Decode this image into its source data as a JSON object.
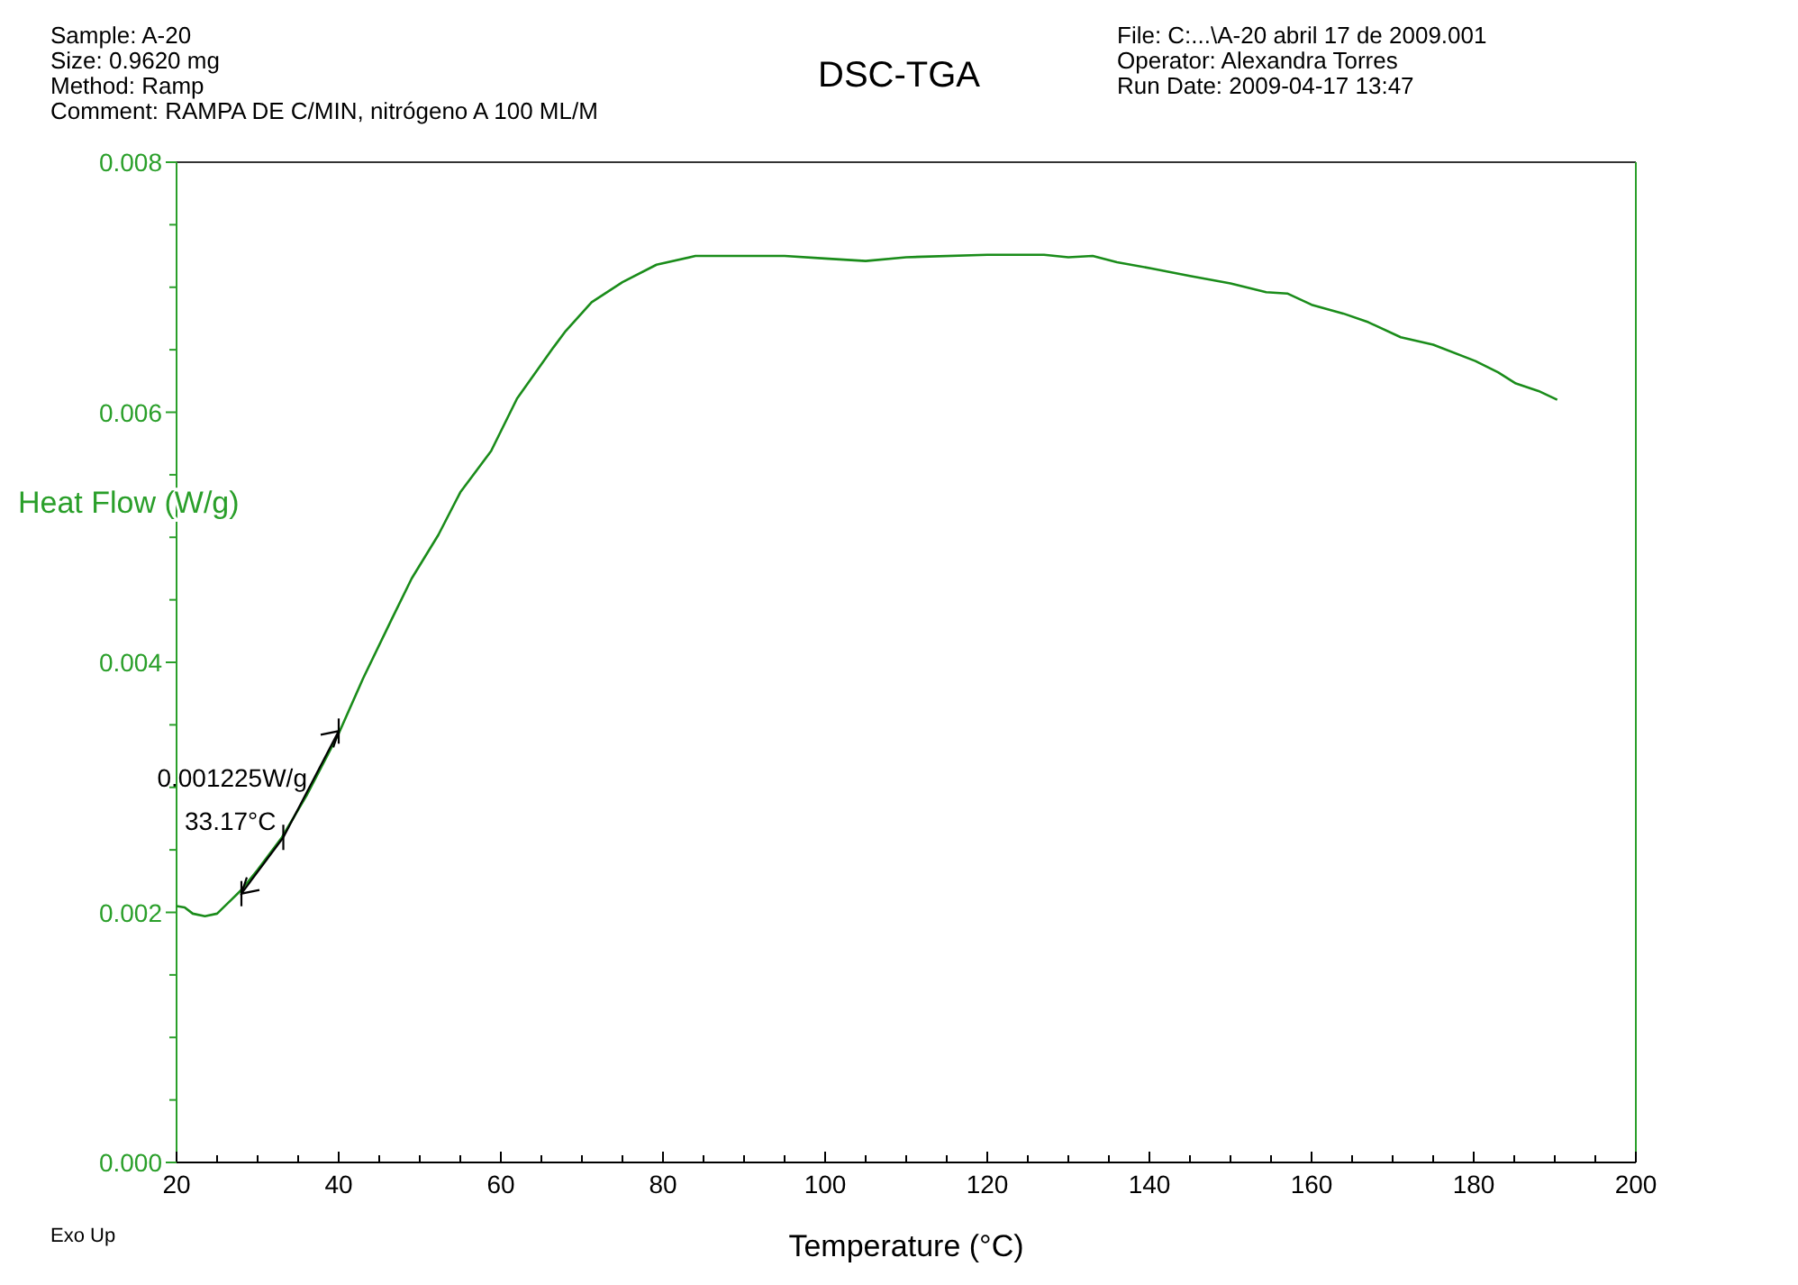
{
  "chart_data": {
    "type": "line",
    "title": "DSC-TGA",
    "xlabel": "Temperature (°C)",
    "ylabel": "Heat Flow (W/g)",
    "annotations": [
      "Sample: A-20",
      "Size:  0.9620 mg",
      "Method: Ramp",
      "Comment: RAMPA DE C/MIN, nitrógeno  A 100 ML/M",
      "File: C:...\\A-20  abril 17 de 2009.001",
      "Operator: Alexandra Torres",
      "Run Date: 2009-04-17 13:47",
      "Exo Up",
      {
        "text": "0.001225W/g",
        "x": 37,
        "y": 0.00295
      },
      {
        "text": "33.17°C",
        "x": 33.17,
        "y": 0.0026
      }
    ],
    "series": [
      {
        "color": "#1a8c1a",
        "x": [
          20,
          21,
          22,
          23.5,
          25,
          28,
          30,
          33,
          36,
          40,
          43,
          46.5,
          49,
          52.3,
          55,
          58.8,
          62,
          66.5,
          68,
          71.2,
          75,
          79.2,
          84,
          90,
          95,
          100,
          105,
          110,
          120,
          127,
          130,
          133,
          136,
          140.3,
          145,
          150,
          154.4,
          157,
          160,
          163.9,
          167,
          171,
          175,
          180.2,
          183,
          185.2,
          188,
          190.3
        ],
        "values": [
          0.00205,
          0.00204,
          0.00199,
          0.00197,
          0.00199,
          0.00218,
          0.00234,
          0.0026,
          0.00293,
          0.00343,
          0.00387,
          0.00434,
          0.00467,
          0.00502,
          0.00536,
          0.00569,
          0.00611,
          0.00652,
          0.00665,
          0.00688,
          0.00704,
          0.00718,
          0.00725,
          0.00725,
          0.00725,
          0.00723,
          0.00721,
          0.00724,
          0.00726,
          0.00726,
          0.00724,
          0.00725,
          0.0072,
          0.00715,
          0.00709,
          0.00703,
          0.00696,
          0.00695,
          0.00686,
          0.00679,
          0.00672,
          0.0066,
          0.00654,
          0.00641,
          0.00632,
          0.00623,
          0.00617,
          0.0061
        ]
      }
    ],
    "xlim": [
      20,
      200
    ],
    "ylim": [
      0,
      0.008
    ],
    "xticks": [
      20,
      {
        "value": 25,
        "label": null
      },
      {
        "value": 30,
        "label": null
      },
      {
        "value": 35,
        "label": null
      },
      40,
      {
        "value": 45,
        "label": null
      },
      {
        "value": 50,
        "label": null
      },
      {
        "value": 55,
        "label": null
      },
      60,
      {
        "value": 65,
        "label": null
      },
      {
        "value": 70,
        "label": null
      },
      {
        "value": 75,
        "label": null
      },
      80,
      {
        "value": 85,
        "label": null
      },
      {
        "value": 90,
        "label": null
      },
      {
        "value": 95,
        "label": null
      },
      100,
      {
        "value": 105,
        "label": null
      },
      {
        "value": 110,
        "label": null
      },
      {
        "value": 115,
        "label": null
      },
      120,
      {
        "value": 125,
        "label": null
      },
      {
        "value": 130,
        "label": null
      },
      {
        "value": 135,
        "label": null
      },
      140,
      {
        "value": 145,
        "label": null
      },
      {
        "value": 150,
        "label": null
      },
      {
        "value": 155,
        "label": null
      },
      160,
      {
        "value": 165,
        "label": null
      },
      {
        "value": 170,
        "label": null
      },
      {
        "value": 175,
        "label": null
      },
      180,
      {
        "value": 185,
        "label": null
      },
      {
        "value": 190,
        "label": null
      },
      {
        "value": 195,
        "label": null
      },
      200
    ],
    "yticks": [
      {
        "value": 0,
        "label": "0.000"
      },
      {
        "value": 0.0005,
        "label": null
      },
      {
        "value": 0.001,
        "label": null
      },
      {
        "value": 0.0015,
        "label": null
      },
      {
        "value": 0.002,
        "label": "0.002"
      },
      {
        "value": 0.0025,
        "label": null
      },
      {
        "value": 0.003,
        "label": null
      },
      {
        "value": 0.0035,
        "label": null
      },
      {
        "value": 0.004,
        "label": "0.004"
      },
      {
        "value": 0.0045,
        "label": null
      },
      {
        "value": 0.005,
        "label": null
      },
      {
        "value": 0.0055,
        "label": null
      },
      {
        "value": 0.006,
        "label": "0.006"
      },
      {
        "value": 0.0065,
        "label": null
      },
      {
        "value": 0.007,
        "label": null
      },
      {
        "value": 0.0075,
        "label": null
      },
      {
        "value": 0.008,
        "label": "0.008"
      }
    ],
    "grid": false
  }
}
